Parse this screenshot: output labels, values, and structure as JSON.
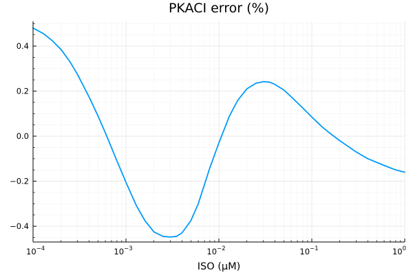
{
  "chart_data": {
    "type": "line",
    "title": "PKACI error (%)",
    "xlabel": "ISO (μM)",
    "ylabel": "",
    "xscale": "log",
    "xlim": [
      0.0001,
      1
    ],
    "ylim": [
      -0.47,
      0.51
    ],
    "grid": true,
    "legend": "none",
    "x_ticks": [
      {
        "value": 0.0001,
        "base": "10",
        "exp": "−4"
      },
      {
        "value": 0.001,
        "base": "10",
        "exp": "−3"
      },
      {
        "value": 0.01,
        "base": "10",
        "exp": "−2"
      },
      {
        "value": 0.1,
        "base": "10",
        "exp": "−1"
      },
      {
        "value": 1,
        "base": "10",
        "exp": "0"
      }
    ],
    "y_ticks": [
      {
        "value": 0.4,
        "label": "0.4"
      },
      {
        "value": 0.2,
        "label": "0.2"
      },
      {
        "value": 0.0,
        "label": "0.0"
      },
      {
        "value": -0.2,
        "label": "−0.2"
      },
      {
        "value": -0.4,
        "label": "−0.4"
      }
    ],
    "series": [
      {
        "color": "#009AFA",
        "x": [
          0.0001,
          0.00013,
          0.00016,
          0.0002,
          0.00025,
          0.0003,
          0.0004,
          0.0005,
          0.0006,
          0.0008,
          0.001,
          0.0013,
          0.0016,
          0.002,
          0.0025,
          0.003,
          0.0035,
          0.004,
          0.005,
          0.006,
          0.008,
          0.01,
          0.013,
          0.016,
          0.02,
          0.025,
          0.03,
          0.035,
          0.04,
          0.05,
          0.06,
          0.08,
          0.1,
          0.13,
          0.16,
          0.2,
          0.3,
          0.4,
          0.6,
          0.8,
          1.0
        ],
        "y": [
          0.48,
          0.455,
          0.425,
          0.385,
          0.33,
          0.275,
          0.175,
          0.09,
          0.015,
          -0.11,
          -0.205,
          -0.31,
          -0.375,
          -0.425,
          -0.445,
          -0.448,
          -0.445,
          -0.43,
          -0.375,
          -0.3,
          -0.14,
          -0.03,
          0.09,
          0.16,
          0.21,
          0.235,
          0.242,
          0.24,
          0.23,
          0.205,
          0.175,
          0.125,
          0.085,
          0.04,
          0.01,
          -0.02,
          -0.07,
          -0.1,
          -0.13,
          -0.15,
          -0.16
        ]
      }
    ]
  },
  "colors": {
    "line": "#009AFA",
    "axis": "#000000",
    "grid": "#e4e4e4",
    "minor_grid": "#f2f2f2",
    "background": "#ffffff"
  }
}
